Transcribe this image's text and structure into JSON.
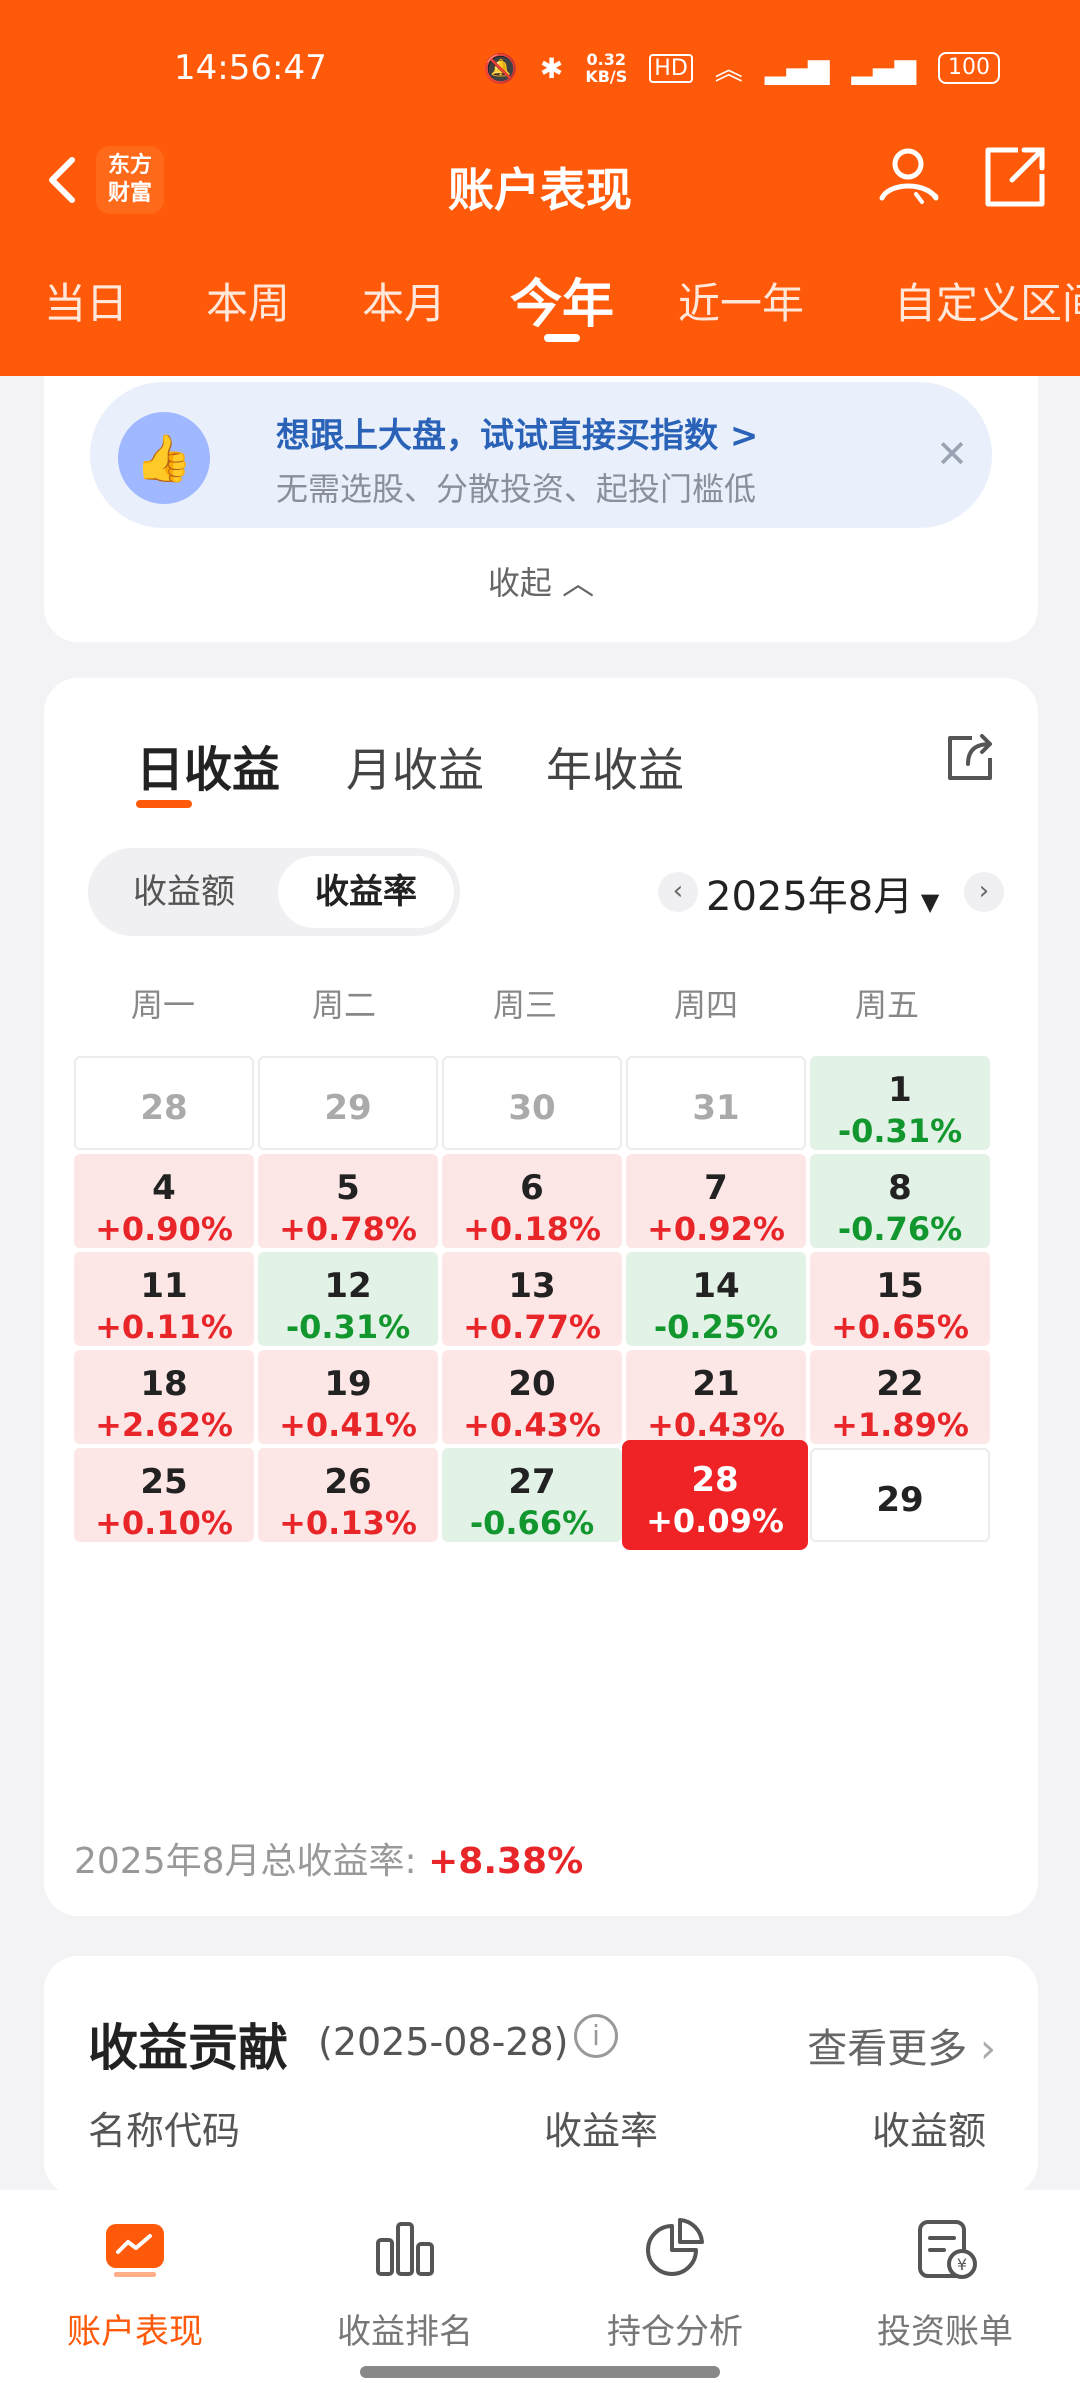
{
  "status_bar": {
    "time": "14:56:47",
    "network_speed": "0.32\nKB/S",
    "battery": "100"
  },
  "nav": {
    "title": "账户表现",
    "logo_text": "东方财富"
  },
  "period_tabs": [
    "当日",
    "本周",
    "本月",
    "今年",
    "近一年",
    "自定义区间"
  ],
  "period_tabs_active": "今年",
  "banner": {
    "title": "想跟上大盘，试试直接买指数 >",
    "subtitle": "无需选股、分散投资、起投门槛低",
    "collapse_label": "收起"
  },
  "profit_panel": {
    "tabs": [
      "日收益",
      "月收益",
      "年收益"
    ],
    "active_tab": "日收益",
    "segment": [
      "收益额",
      "收益率"
    ],
    "segment_active": "收益率",
    "month": "2025年8月",
    "weekdays": [
      "周一",
      "周二",
      "周三",
      "周四",
      "周五"
    ],
    "calendar": [
      {
        "day": "28",
        "value": "",
        "type": "empty"
      },
      {
        "day": "29",
        "value": "",
        "type": "empty"
      },
      {
        "day": "30",
        "value": "",
        "type": "empty"
      },
      {
        "day": "31",
        "value": "",
        "type": "empty"
      },
      {
        "day": "1",
        "value": "-0.31%",
        "type": "green"
      },
      {
        "day": "4",
        "value": "+0.90%",
        "type": "red"
      },
      {
        "day": "5",
        "value": "+0.78%",
        "type": "red"
      },
      {
        "day": "6",
        "value": "+0.18%",
        "type": "red"
      },
      {
        "day": "7",
        "value": "+0.92%",
        "type": "red"
      },
      {
        "day": "8",
        "value": "-0.76%",
        "type": "green"
      },
      {
        "day": "11",
        "value": "+0.11%",
        "type": "red"
      },
      {
        "day": "12",
        "value": "-0.31%",
        "type": "green"
      },
      {
        "day": "13",
        "value": "+0.77%",
        "type": "red"
      },
      {
        "day": "14",
        "value": "-0.25%",
        "type": "green"
      },
      {
        "day": "15",
        "value": "+0.65%",
        "type": "red"
      },
      {
        "day": "18",
        "value": "+2.62%",
        "type": "red"
      },
      {
        "day": "19",
        "value": "+0.41%",
        "type": "red"
      },
      {
        "day": "20",
        "value": "+0.43%",
        "type": "red"
      },
      {
        "day": "21",
        "value": "+0.43%",
        "type": "red"
      },
      {
        "day": "22",
        "value": "+1.89%",
        "type": "red"
      },
      {
        "day": "25",
        "value": "+0.10%",
        "type": "red"
      },
      {
        "day": "26",
        "value": "+0.13%",
        "type": "red"
      },
      {
        "day": "27",
        "value": "-0.66%",
        "type": "green"
      },
      {
        "day": "28",
        "value": "+0.09%",
        "type": "sel"
      },
      {
        "day": "29",
        "value": "",
        "type": "future"
      }
    ],
    "total_label": "2025年8月总收益率: ",
    "total_value": "+8.38%"
  },
  "contribution": {
    "title": "收益贡献",
    "date": "(2025-08-28)",
    "more": "查看更多",
    "columns": [
      "名称代码",
      "收益率",
      "收益额"
    ]
  },
  "bottom_nav": [
    {
      "label": "账户表现",
      "icon": "account-performance-icon"
    },
    {
      "label": "收益排名",
      "icon": "bar-chart-icon"
    },
    {
      "label": "持仓分析",
      "icon": "pie-chart-icon"
    },
    {
      "label": "投资账单",
      "icon": "bill-icon"
    }
  ],
  "colors": {
    "brand": "#ff5a0a",
    "up": "#e8262a",
    "down": "#12962e"
  }
}
